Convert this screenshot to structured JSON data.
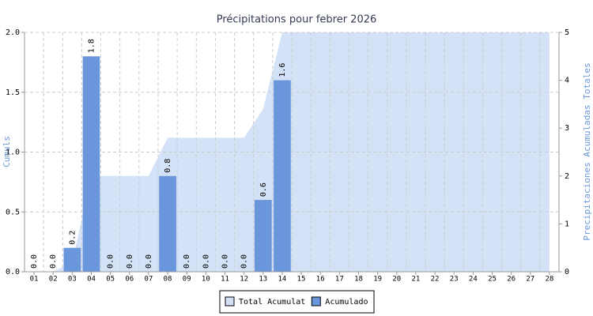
{
  "chart_data": {
    "type": "bar",
    "title": "Précipitations pour febrer 2026",
    "ylabel": "Cumuls",
    "y2label": "Precipitaciones Acumuladas Totales",
    "categories": [
      "01",
      "02",
      "03",
      "04",
      "05",
      "06",
      "07",
      "08",
      "09",
      "10",
      "11",
      "12",
      "13",
      "14",
      "15",
      "16",
      "17",
      "18",
      "19",
      "20",
      "21",
      "22",
      "23",
      "24",
      "25",
      "26",
      "27",
      "28"
    ],
    "series": [
      {
        "name": "Total Acumulat",
        "type": "area",
        "axis": "y2",
        "color": "#d4e2f8",
        "values": [
          0,
          0,
          0.2,
          2.0,
          2.0,
          2.0,
          2.0,
          2.8,
          2.8,
          2.8,
          2.8,
          2.8,
          3.4,
          5.0,
          5.0,
          5.0,
          5.0,
          5.0,
          5.0,
          5.0,
          5.0,
          5.0,
          5.0,
          5.0,
          5.0,
          5.0,
          5.0,
          5.0
        ]
      },
      {
        "name": "Acumulado",
        "type": "bar",
        "color": "#6a96dc",
        "values": [
          0,
          0,
          0.2,
          1.8,
          0,
          0,
          0,
          0.8,
          0,
          0,
          0,
          0,
          0.6,
          1.6,
          null,
          null,
          null,
          null,
          null,
          null,
          null,
          null,
          null,
          null,
          null,
          null,
          null,
          null
        ],
        "value_labels": [
          "0.0",
          "0.0",
          "0.2",
          "1.8",
          "0.0",
          "0.0",
          "0.0",
          "0.8",
          "0.0",
          "0.0",
          "0.0",
          "0.0",
          "0.6",
          "1.6",
          null,
          null,
          null,
          null,
          null,
          null,
          null,
          null,
          null,
          null,
          null,
          null,
          null,
          null
        ]
      }
    ],
    "ylim": [
      0,
      2
    ],
    "yticks": [
      {
        "value": 0,
        "label": "0.0"
      },
      {
        "value": 0.5,
        "label": "0.5"
      },
      {
        "value": 1,
        "label": "1.0"
      },
      {
        "value": 1.5,
        "label": "1.5"
      },
      {
        "value": 2,
        "label": "2.0"
      }
    ],
    "y2lim": [
      0,
      5
    ],
    "y2ticks": [
      0,
      1,
      2,
      3,
      4,
      5
    ],
    "grid": true,
    "legend": "bottom"
  }
}
